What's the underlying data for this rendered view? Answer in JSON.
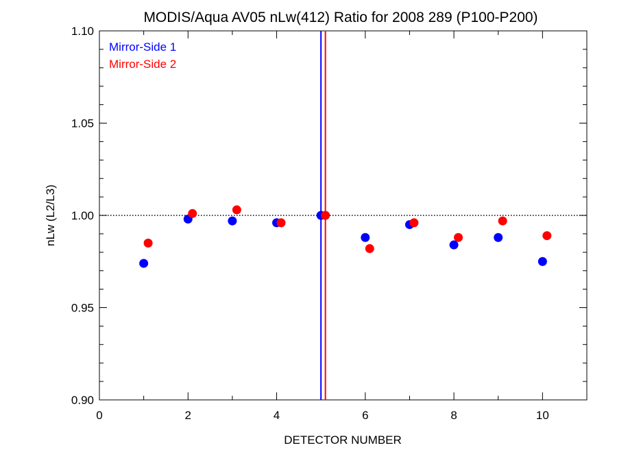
{
  "chart_data": {
    "type": "scatter",
    "title": "MODIS/Aqua AV05 nLw(412) Ratio for 2008 289 (P100-P200)",
    "xlabel": "DETECTOR NUMBER",
    "ylabel": "nLw (L2/L3)",
    "xlim": [
      0,
      11
    ],
    "ylim": [
      0.9,
      1.1
    ],
    "x_ticks": [
      0,
      2,
      4,
      6,
      8,
      10
    ],
    "x_tick_labels": [
      "0",
      "2",
      "4",
      "6",
      "8",
      "10"
    ],
    "y_ticks": [
      0.9,
      0.95,
      1.0,
      1.05,
      1.1
    ],
    "y_tick_labels": [
      "0.90",
      "0.95",
      "1.00",
      "1.05",
      "1.10"
    ],
    "grid": false,
    "legend_position": "top-left",
    "reference_line": {
      "y": 1.0,
      "style": "dotted"
    },
    "vertical_lines": [
      {
        "x": 5.0,
        "color": "#0000ff"
      },
      {
        "x": 5.1,
        "color": "#ff0000"
      }
    ],
    "series": [
      {
        "name": "Mirror-Side 1",
        "color": "#0000ff",
        "x": [
          1,
          2,
          3,
          4,
          5,
          6,
          7,
          8,
          9,
          10
        ],
        "y": [
          0.974,
          0.998,
          0.997,
          0.996,
          1.0,
          0.988,
          0.995,
          0.984,
          0.988,
          0.975
        ]
      },
      {
        "name": "Mirror-Side 2",
        "color": "#ff0000",
        "x": [
          1.1,
          2.1,
          3.1,
          4.1,
          5.1,
          6.1,
          7.1,
          8.1,
          9.1,
          10.1
        ],
        "y": [
          0.985,
          1.001,
          1.003,
          0.996,
          1.0,
          0.982,
          0.996,
          0.988,
          0.997,
          0.989
        ]
      }
    ]
  }
}
